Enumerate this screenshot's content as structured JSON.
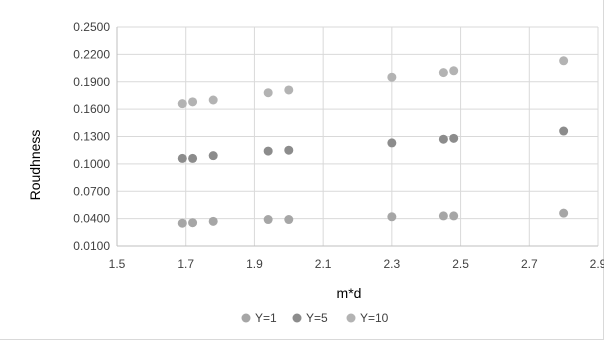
{
  "chart_data": {
    "type": "scatter",
    "title": "",
    "xlabel": "m*d",
    "ylabel": "Roudhness",
    "xlim": [
      1.5,
      2.9
    ],
    "ylim": [
      0.01,
      0.25
    ],
    "x_ticks": [
      1.5,
      1.7,
      1.9,
      2.1,
      2.3,
      2.5,
      2.7,
      2.9
    ],
    "x_tick_labels": [
      "1.5",
      "1.7",
      "1.9",
      "2.1",
      "2.3",
      "2.5",
      "2.7",
      "2.9"
    ],
    "y_ticks": [
      0.01,
      0.04,
      0.07,
      0.1,
      0.13,
      0.16,
      0.19,
      0.22,
      0.25
    ],
    "y_tick_labels": [
      "0.0100",
      "0.0400",
      "0.0700",
      "0.1000",
      "0.1300",
      "0.1600",
      "0.1900",
      "0.2200",
      "0.2500"
    ],
    "grid": true,
    "legend_position": "bottom",
    "x": [
      1.69,
      1.72,
      1.78,
      1.94,
      2.0,
      2.3,
      2.45,
      2.48,
      2.8
    ],
    "series": [
      {
        "name": "Y=1",
        "color": "#a6a6a6",
        "values": [
          0.035,
          0.0355,
          0.037,
          0.039,
          0.039,
          0.042,
          0.043,
          0.043,
          0.046
        ]
      },
      {
        "name": "Y=5",
        "color": "#8c8c8c",
        "values": [
          0.106,
          0.106,
          0.109,
          0.114,
          0.115,
          0.123,
          0.127,
          0.128,
          0.136
        ]
      },
      {
        "name": "Y=10",
        "color": "#b3b3b3",
        "values": [
          0.166,
          0.168,
          0.17,
          0.178,
          0.181,
          0.195,
          0.2,
          0.202,
          0.213
        ]
      }
    ]
  }
}
